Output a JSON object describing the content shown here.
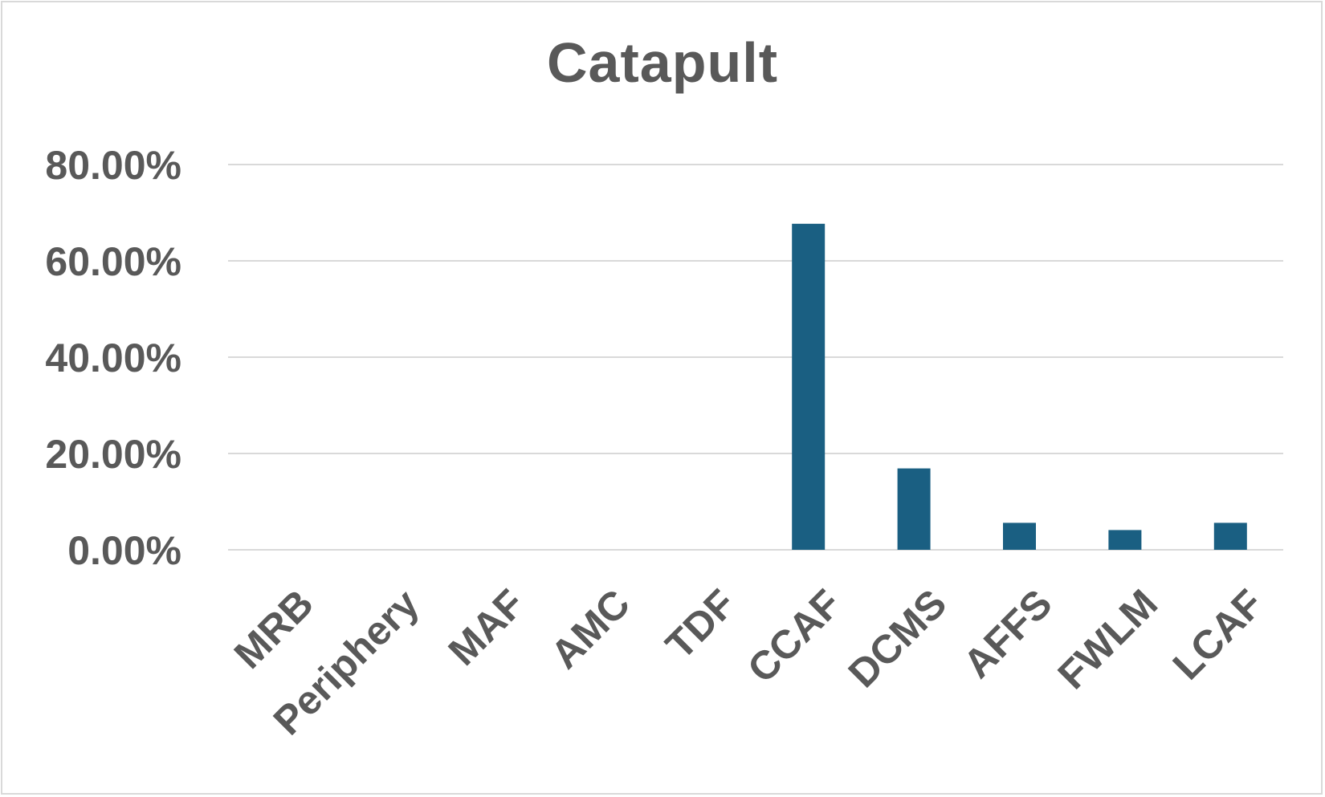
{
  "chart_data": {
    "type": "bar",
    "title": "Catapult",
    "xlabel": "",
    "ylabel": "",
    "categories": [
      "MRB",
      "Periphery",
      "MAF",
      "AMC",
      "TDF",
      "CCAF",
      "DCMS",
      "AFFS",
      "FWLM",
      "LCAF"
    ],
    "values": [
      0,
      0,
      0,
      0,
      0,
      67.7,
      16.9,
      5.6,
      4.1,
      5.6
    ],
    "ylim": [
      0,
      80
    ],
    "yticks": [
      0,
      20,
      40,
      60,
      80
    ],
    "ytick_labels": [
      "0.00%",
      "20.00%",
      "40.00%",
      "60.00%",
      "80.00%"
    ],
    "grid": true,
    "legend": "none",
    "bar_color": "#1a5f82",
    "grid_color": "#d9d9d9"
  }
}
